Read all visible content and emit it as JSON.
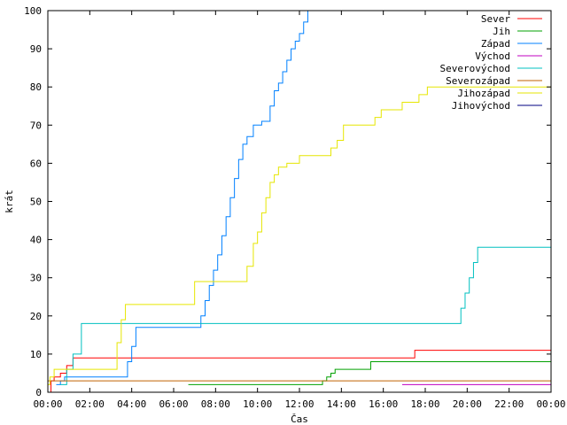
{
  "chart_data": {
    "type": "line",
    "xlabel": "Čas",
    "ylabel": "krát",
    "xlim": [
      0,
      24
    ],
    "ylim": [
      0,
      100
    ],
    "x_ticks": [
      {
        "v": 0,
        "label": "00:00"
      },
      {
        "v": 2,
        "label": "02:00"
      },
      {
        "v": 4,
        "label": "04:00"
      },
      {
        "v": 6,
        "label": "06:00"
      },
      {
        "v": 8,
        "label": "08:00"
      },
      {
        "v": 10,
        "label": "10:00"
      },
      {
        "v": 12,
        "label": "12:00"
      },
      {
        "v": 14,
        "label": "14:00"
      },
      {
        "v": 16,
        "label": "16:00"
      },
      {
        "v": 18,
        "label": "18:00"
      },
      {
        "v": 20,
        "label": "20:00"
      },
      {
        "v": 22,
        "label": "22:00"
      },
      {
        "v": 24,
        "label": "00:00"
      }
    ],
    "y_ticks": [
      0,
      10,
      20,
      30,
      40,
      50,
      60,
      70,
      80,
      90,
      100
    ],
    "grid": false,
    "legend_position": "top-right",
    "step": true,
    "series": [
      {
        "name": "Sever",
        "color": "#ff0000",
        "x": [
          0,
          0.15,
          0.3,
          0.6,
          0.9,
          1.2,
          17.5,
          24
        ],
        "y": [
          0,
          3,
          4,
          5,
          7,
          9,
          11,
          11
        ]
      },
      {
        "name": "Jih",
        "color": "#00a000",
        "x": [
          6.7,
          13.1,
          13.3,
          13.5,
          13.7,
          15.4,
          24
        ],
        "y": [
          2,
          3,
          4,
          5,
          6,
          8,
          8
        ]
      },
      {
        "name": "Západ",
        "color": "#0080ff",
        "x": [
          0.4,
          0.6,
          0.8,
          3.6,
          3.8,
          4.0,
          4.2,
          7.1,
          7.3,
          7.5,
          7.7,
          7.9,
          8.1,
          8.3,
          8.5,
          8.7,
          8.9,
          9.1,
          9.3,
          9.5,
          9.8,
          10.2,
          10.6,
          10.8,
          11.0,
          11.2,
          11.4,
          11.6,
          11.8,
          12.0,
          12.2,
          12.4,
          12.8
        ],
        "y": [
          2,
          3,
          4,
          4,
          8,
          12,
          17,
          17,
          20,
          24,
          28,
          32,
          36,
          41,
          46,
          51,
          56,
          61,
          65,
          67,
          70,
          71,
          75,
          79,
          81,
          84,
          87,
          90,
          92,
          94,
          97,
          100,
          100
        ]
      },
      {
        "name": "Východ",
        "color": "#c000c0",
        "x": [
          16.9,
          24
        ],
        "y": [
          2,
          2
        ]
      },
      {
        "name": "Severovýchod",
        "color": "#00c0c0",
        "x": [
          0.6,
          0.9,
          1.2,
          1.6,
          19.5,
          19.7,
          19.9,
          20.1,
          20.3,
          20.5,
          24
        ],
        "y": [
          2,
          6,
          10,
          18,
          18,
          22,
          26,
          30,
          34,
          38,
          38
        ]
      },
      {
        "name": "Severozápad",
        "color": "#c06000",
        "x": [
          0,
          0.3,
          24
        ],
        "y": [
          3,
          3,
          3
        ]
      },
      {
        "name": "Jihozápad",
        "color": "#e6e600",
        "x": [
          0,
          0.1,
          0.3,
          3.1,
          3.3,
          3.5,
          3.7,
          6.8,
          7.0,
          9.3,
          9.5,
          9.8,
          10.0,
          10.2,
          10.4,
          10.6,
          10.8,
          11.0,
          11.2,
          11.4,
          11.7,
          12.0,
          13.2,
          13.5,
          13.8,
          14.1,
          14.4,
          15.6,
          15.9,
          16.2,
          16.9,
          17.7,
          18.1,
          24
        ],
        "y": [
          2,
          4,
          6,
          6,
          13,
          19,
          23,
          23,
          29,
          29,
          33,
          39,
          42,
          47,
          51,
          55,
          57,
          59,
          59,
          60,
          60,
          62,
          62,
          64,
          66,
          70,
          70,
          72,
          74,
          74,
          76,
          78,
          80,
          80
        ]
      },
      {
        "name": "Jihovýchod",
        "color": "#000080",
        "x": [
          24
        ],
        "y": [
          0
        ]
      }
    ]
  }
}
